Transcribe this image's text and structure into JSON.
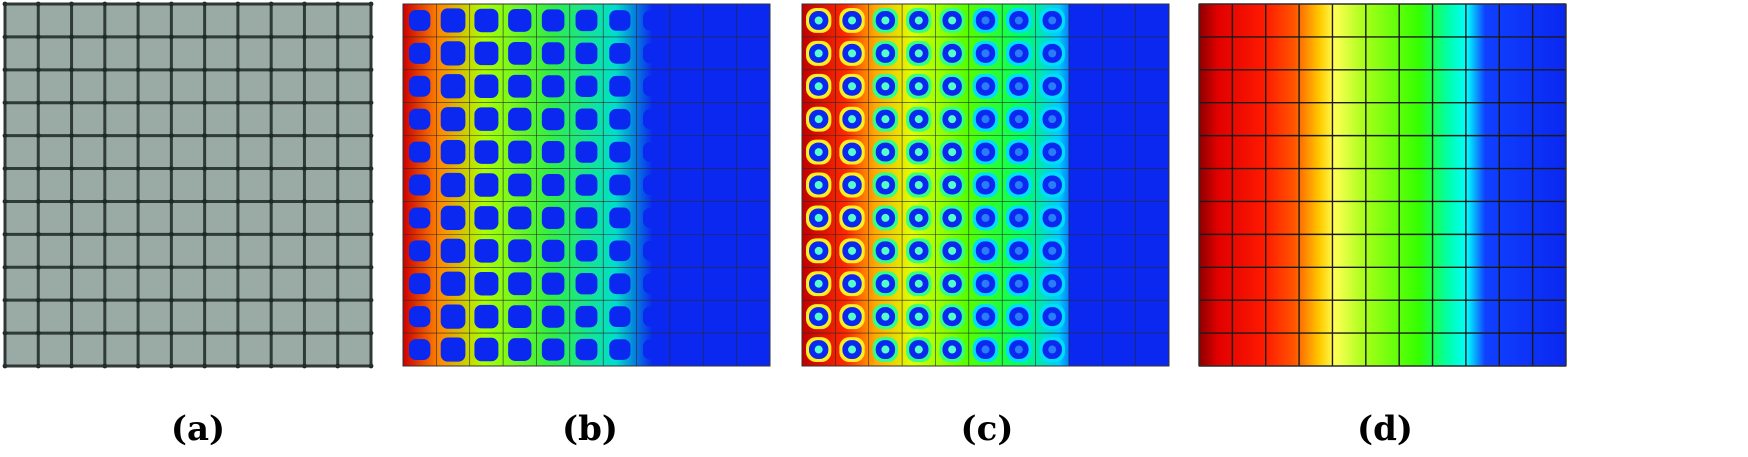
{
  "panels": [
    {
      "id": "a",
      "caption": "(a)",
      "kind": "mesh"
    },
    {
      "id": "b",
      "caption": "(b)",
      "kind": "fine-field"
    },
    {
      "id": "c",
      "caption": "(c)",
      "kind": "cell-field"
    },
    {
      "id": "d",
      "caption": "(d)",
      "kind": "smooth-field"
    }
  ],
  "grid_cells": 11,
  "colors": {
    "mesh_fill": "#9aaaa4",
    "mesh_line": "#2e3b38",
    "field_low": "#0a28f0",
    "field_line": "#1a1a1a",
    "caption": "#000000"
  }
}
